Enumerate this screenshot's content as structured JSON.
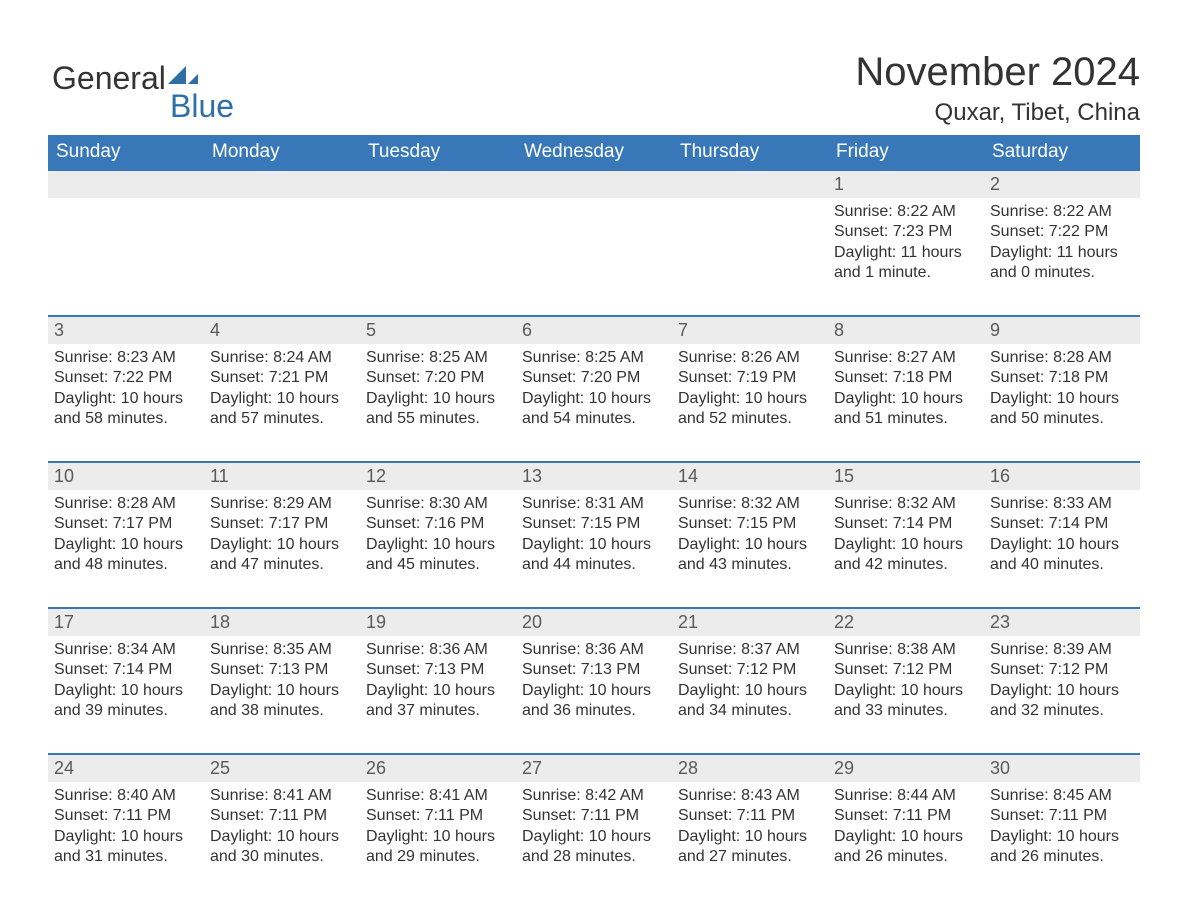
{
  "logo": {
    "part1": "General",
    "part2": "Blue",
    "iconColor": "#2f6fa8"
  },
  "title": "November 2024",
  "location": "Quxar, Tibet, China",
  "colors": {
    "headerBg": "#3878b8",
    "headerText": "#ffffff",
    "dayRowBg": "#ececec",
    "dayRowBorder": "#3878b8",
    "bodyText": "#333333"
  },
  "weekdays": [
    "Sunday",
    "Monday",
    "Tuesday",
    "Wednesday",
    "Thursday",
    "Friday",
    "Saturday"
  ],
  "weeks": [
    [
      null,
      null,
      null,
      null,
      null,
      {
        "n": "1",
        "sr": "Sunrise: 8:22 AM",
        "ss": "Sunset: 7:23 PM",
        "dl1": "Daylight: 11 hours",
        "dl2": "and 1 minute."
      },
      {
        "n": "2",
        "sr": "Sunrise: 8:22 AM",
        "ss": "Sunset: 7:22 PM",
        "dl1": "Daylight: 11 hours",
        "dl2": "and 0 minutes."
      }
    ],
    [
      {
        "n": "3",
        "sr": "Sunrise: 8:23 AM",
        "ss": "Sunset: 7:22 PM",
        "dl1": "Daylight: 10 hours",
        "dl2": "and 58 minutes."
      },
      {
        "n": "4",
        "sr": "Sunrise: 8:24 AM",
        "ss": "Sunset: 7:21 PM",
        "dl1": "Daylight: 10 hours",
        "dl2": "and 57 minutes."
      },
      {
        "n": "5",
        "sr": "Sunrise: 8:25 AM",
        "ss": "Sunset: 7:20 PM",
        "dl1": "Daylight: 10 hours",
        "dl2": "and 55 minutes."
      },
      {
        "n": "6",
        "sr": "Sunrise: 8:25 AM",
        "ss": "Sunset: 7:20 PM",
        "dl1": "Daylight: 10 hours",
        "dl2": "and 54 minutes."
      },
      {
        "n": "7",
        "sr": "Sunrise: 8:26 AM",
        "ss": "Sunset: 7:19 PM",
        "dl1": "Daylight: 10 hours",
        "dl2": "and 52 minutes."
      },
      {
        "n": "8",
        "sr": "Sunrise: 8:27 AM",
        "ss": "Sunset: 7:18 PM",
        "dl1": "Daylight: 10 hours",
        "dl2": "and 51 minutes."
      },
      {
        "n": "9",
        "sr": "Sunrise: 8:28 AM",
        "ss": "Sunset: 7:18 PM",
        "dl1": "Daylight: 10 hours",
        "dl2": "and 50 minutes."
      }
    ],
    [
      {
        "n": "10",
        "sr": "Sunrise: 8:28 AM",
        "ss": "Sunset: 7:17 PM",
        "dl1": "Daylight: 10 hours",
        "dl2": "and 48 minutes."
      },
      {
        "n": "11",
        "sr": "Sunrise: 8:29 AM",
        "ss": "Sunset: 7:17 PM",
        "dl1": "Daylight: 10 hours",
        "dl2": "and 47 minutes."
      },
      {
        "n": "12",
        "sr": "Sunrise: 8:30 AM",
        "ss": "Sunset: 7:16 PM",
        "dl1": "Daylight: 10 hours",
        "dl2": "and 45 minutes."
      },
      {
        "n": "13",
        "sr": "Sunrise: 8:31 AM",
        "ss": "Sunset: 7:15 PM",
        "dl1": "Daylight: 10 hours",
        "dl2": "and 44 minutes."
      },
      {
        "n": "14",
        "sr": "Sunrise: 8:32 AM",
        "ss": "Sunset: 7:15 PM",
        "dl1": "Daylight: 10 hours",
        "dl2": "and 43 minutes."
      },
      {
        "n": "15",
        "sr": "Sunrise: 8:32 AM",
        "ss": "Sunset: 7:14 PM",
        "dl1": "Daylight: 10 hours",
        "dl2": "and 42 minutes."
      },
      {
        "n": "16",
        "sr": "Sunrise: 8:33 AM",
        "ss": "Sunset: 7:14 PM",
        "dl1": "Daylight: 10 hours",
        "dl2": "and 40 minutes."
      }
    ],
    [
      {
        "n": "17",
        "sr": "Sunrise: 8:34 AM",
        "ss": "Sunset: 7:14 PM",
        "dl1": "Daylight: 10 hours",
        "dl2": "and 39 minutes."
      },
      {
        "n": "18",
        "sr": "Sunrise: 8:35 AM",
        "ss": "Sunset: 7:13 PM",
        "dl1": "Daylight: 10 hours",
        "dl2": "and 38 minutes."
      },
      {
        "n": "19",
        "sr": "Sunrise: 8:36 AM",
        "ss": "Sunset: 7:13 PM",
        "dl1": "Daylight: 10 hours",
        "dl2": "and 37 minutes."
      },
      {
        "n": "20",
        "sr": "Sunrise: 8:36 AM",
        "ss": "Sunset: 7:13 PM",
        "dl1": "Daylight: 10 hours",
        "dl2": "and 36 minutes."
      },
      {
        "n": "21",
        "sr": "Sunrise: 8:37 AM",
        "ss": "Sunset: 7:12 PM",
        "dl1": "Daylight: 10 hours",
        "dl2": "and 34 minutes."
      },
      {
        "n": "22",
        "sr": "Sunrise: 8:38 AM",
        "ss": "Sunset: 7:12 PM",
        "dl1": "Daylight: 10 hours",
        "dl2": "and 33 minutes."
      },
      {
        "n": "23",
        "sr": "Sunrise: 8:39 AM",
        "ss": "Sunset: 7:12 PM",
        "dl1": "Daylight: 10 hours",
        "dl2": "and 32 minutes."
      }
    ],
    [
      {
        "n": "24",
        "sr": "Sunrise: 8:40 AM",
        "ss": "Sunset: 7:11 PM",
        "dl1": "Daylight: 10 hours",
        "dl2": "and 31 minutes."
      },
      {
        "n": "25",
        "sr": "Sunrise: 8:41 AM",
        "ss": "Sunset: 7:11 PM",
        "dl1": "Daylight: 10 hours",
        "dl2": "and 30 minutes."
      },
      {
        "n": "26",
        "sr": "Sunrise: 8:41 AM",
        "ss": "Sunset: 7:11 PM",
        "dl1": "Daylight: 10 hours",
        "dl2": "and 29 minutes."
      },
      {
        "n": "27",
        "sr": "Sunrise: 8:42 AM",
        "ss": "Sunset: 7:11 PM",
        "dl1": "Daylight: 10 hours",
        "dl2": "and 28 minutes."
      },
      {
        "n": "28",
        "sr": "Sunrise: 8:43 AM",
        "ss": "Sunset: 7:11 PM",
        "dl1": "Daylight: 10 hours",
        "dl2": "and 27 minutes."
      },
      {
        "n": "29",
        "sr": "Sunrise: 8:44 AM",
        "ss": "Sunset: 7:11 PM",
        "dl1": "Daylight: 10 hours",
        "dl2": "and 26 minutes."
      },
      {
        "n": "30",
        "sr": "Sunrise: 8:45 AM",
        "ss": "Sunset: 7:11 PM",
        "dl1": "Daylight: 10 hours",
        "dl2": "and 26 minutes."
      }
    ]
  ]
}
